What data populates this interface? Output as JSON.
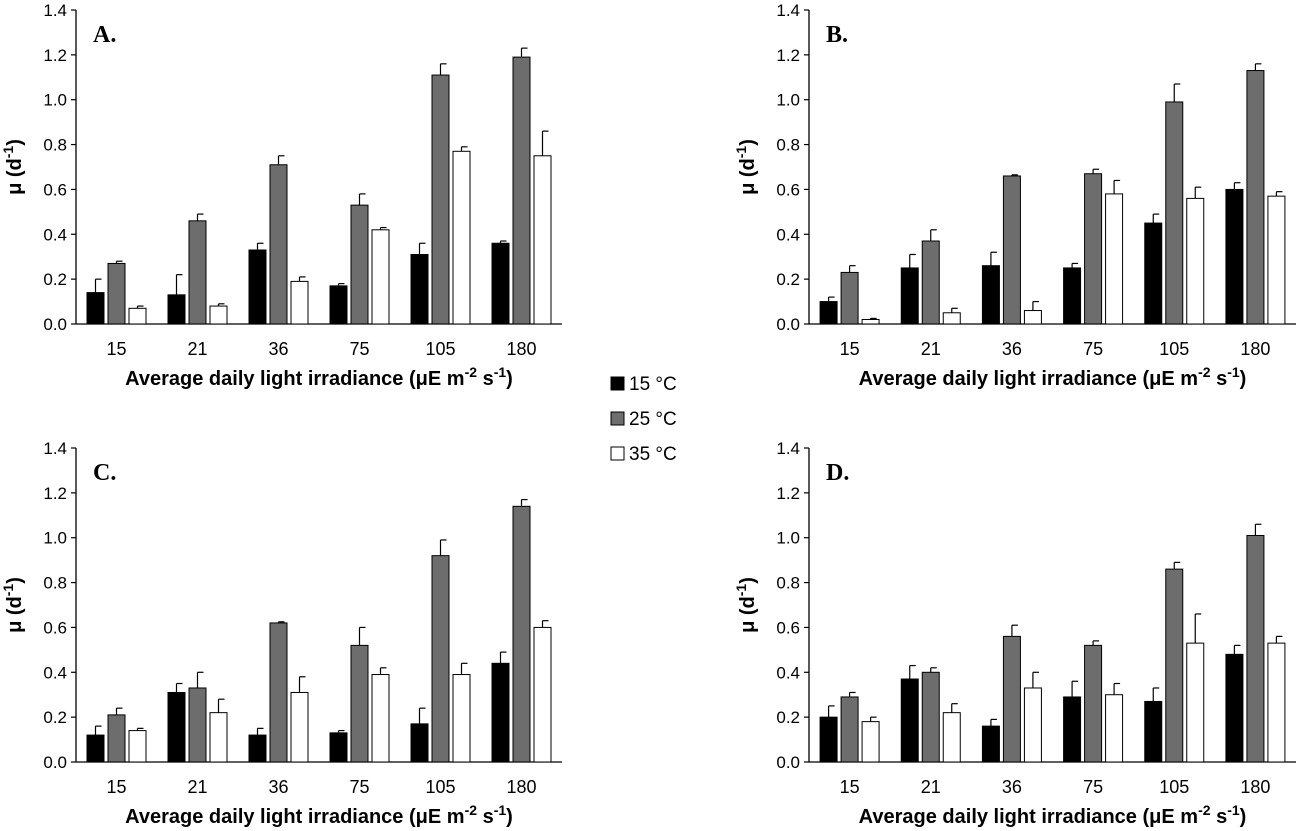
{
  "chart_data": [
    {
      "type": "bar",
      "panel_label": "A.",
      "categories": [
        "15",
        "21",
        "36",
        "75",
        "105",
        "180"
      ],
      "series": [
        {
          "name": "15 °C",
          "values": [
            0.14,
            0.13,
            0.33,
            0.17,
            0.31,
            0.36
          ],
          "errors": [
            0.06,
            0.09,
            0.03,
            0.01,
            0.05,
            0.01
          ]
        },
        {
          "name": "25 °C",
          "values": [
            0.27,
            0.46,
            0.71,
            0.53,
            1.11,
            1.19
          ],
          "errors": [
            0.01,
            0.03,
            0.04,
            0.05,
            0.05,
            0.04
          ]
        },
        {
          "name": "35 °C",
          "values": [
            0.07,
            0.08,
            0.19,
            0.42,
            0.77,
            0.75
          ],
          "errors": [
            0.01,
            0.01,
            0.02,
            0.01,
            0.02,
            0.11
          ]
        }
      ],
      "xlabel": "Average daily light irradiance (μE m⁻² s⁻¹)",
      "ylabel": "μ (d⁻¹)",
      "ylim": [
        0,
        1.4
      ],
      "yticks": [
        "0.0",
        "0.2",
        "0.4",
        "0.6",
        "0.8",
        "1.0",
        "1.2",
        "1.4"
      ]
    },
    {
      "type": "bar",
      "panel_label": "B.",
      "categories": [
        "15",
        "21",
        "36",
        "75",
        "105",
        "180"
      ],
      "series": [
        {
          "name": "15 °C",
          "values": [
            0.1,
            0.25,
            0.26,
            0.25,
            0.45,
            0.6
          ],
          "errors": [
            0.02,
            0.06,
            0.06,
            0.02,
            0.04,
            0.03
          ]
        },
        {
          "name": "25 °C",
          "values": [
            0.23,
            0.37,
            0.66,
            0.67,
            0.99,
            1.13
          ],
          "errors": [
            0.03,
            0.05,
            0.005,
            0.02,
            0.08,
            0.03
          ]
        },
        {
          "name": "35 °C",
          "values": [
            0.02,
            0.05,
            0.06,
            0.58,
            0.56,
            0.57
          ],
          "errors": [
            0.005,
            0.02,
            0.04,
            0.06,
            0.05,
            0.02
          ]
        }
      ],
      "xlabel": "Average daily light irradiance (μE m⁻² s⁻¹)",
      "ylabel": "μ (d⁻¹)",
      "ylim": [
        0,
        1.4
      ],
      "yticks": [
        "0.0",
        "0.2",
        "0.4",
        "0.6",
        "0.8",
        "1.0",
        "1.2",
        "1.4"
      ]
    },
    {
      "type": "bar",
      "panel_label": "C.",
      "categories": [
        "15",
        "21",
        "36",
        "75",
        "105",
        "180"
      ],
      "series": [
        {
          "name": "15 °C",
          "values": [
            0.12,
            0.31,
            0.12,
            0.13,
            0.17,
            0.44
          ],
          "errors": [
            0.04,
            0.04,
            0.03,
            0.01,
            0.07,
            0.05
          ]
        },
        {
          "name": "25 °C",
          "values": [
            0.21,
            0.33,
            0.62,
            0.52,
            0.92,
            1.14
          ],
          "errors": [
            0.03,
            0.07,
            0.005,
            0.08,
            0.07,
            0.03
          ]
        },
        {
          "name": "35 °C",
          "values": [
            0.14,
            0.22,
            0.31,
            0.39,
            0.39,
            0.6
          ],
          "errors": [
            0.01,
            0.06,
            0.07,
            0.03,
            0.05,
            0.03
          ]
        }
      ],
      "xlabel": "Average daily light irradiance (μE m⁻² s⁻¹)",
      "ylabel": "μ (d⁻¹)",
      "ylim": [
        0,
        1.4
      ],
      "yticks": [
        "0.0",
        "0.2",
        "0.4",
        "0.6",
        "0.8",
        "1.0",
        "1.2",
        "1.4"
      ]
    },
    {
      "type": "bar",
      "panel_label": "D.",
      "categories": [
        "15",
        "21",
        "36",
        "75",
        "105",
        "180"
      ],
      "series": [
        {
          "name": "15 °C",
          "values": [
            0.2,
            0.37,
            0.16,
            0.29,
            0.27,
            0.48
          ],
          "errors": [
            0.05,
            0.06,
            0.03,
            0.07,
            0.06,
            0.04
          ]
        },
        {
          "name": "25 °C",
          "values": [
            0.29,
            0.4,
            0.56,
            0.52,
            0.86,
            1.01
          ],
          "errors": [
            0.02,
            0.02,
            0.05,
            0.02,
            0.03,
            0.05
          ]
        },
        {
          "name": "35 °C",
          "values": [
            0.18,
            0.22,
            0.33,
            0.3,
            0.53,
            0.53
          ],
          "errors": [
            0.02,
            0.04,
            0.07,
            0.05,
            0.13,
            0.03
          ]
        }
      ],
      "xlabel": "Average daily light irradiance (μE m⁻² s⁻¹)",
      "ylabel": "μ (d⁻¹)",
      "ylim": [
        0,
        1.4
      ],
      "yticks": [
        "0.0",
        "0.2",
        "0.4",
        "0.6",
        "0.8",
        "1.0",
        "1.2",
        "1.4"
      ]
    }
  ],
  "legend": {
    "entries": [
      {
        "label": "15 °C",
        "color": "#000000"
      },
      {
        "label": "25 °C",
        "color": "#6d6d6d"
      },
      {
        "label": "35 °C",
        "color": "#ffffff"
      }
    ]
  },
  "colors": {
    "bar_outline": "#000000",
    "axis": "#000000"
  }
}
